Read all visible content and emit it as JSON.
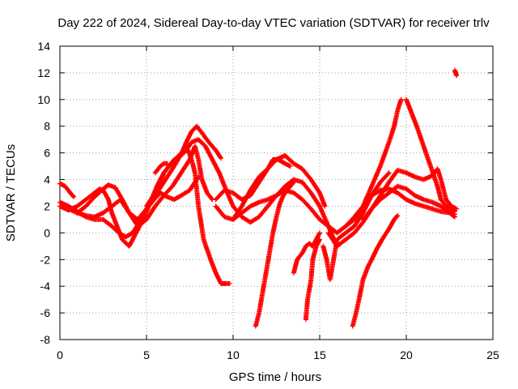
{
  "chart_data": {
    "type": "scatter",
    "title": "Day 222 of 2024, Sidereal Day-to-day VTEC variation (SDTVAR) for receiver trlv",
    "xlabel": "GPS time / hours",
    "ylabel": "SDTVAR / TECUs",
    "xlim": [
      0,
      25
    ],
    "ylim": [
      -8,
      14
    ],
    "x_ticks": [
      0,
      5,
      10,
      15,
      20,
      25
    ],
    "y_ticks": [
      -8,
      -6,
      -4,
      -2,
      0,
      2,
      4,
      6,
      8,
      10,
      12,
      14
    ],
    "grid": true,
    "marker": "+",
    "color": "#ff0000",
    "series": [
      {
        "x": [
          0.0,
          0.3,
          0.6,
          0.8
        ],
        "y": [
          3.7,
          3.5,
          3.0,
          2.7
        ]
      },
      {
        "x": [
          0.0,
          0.5,
          1.0,
          1.5,
          2.0,
          2.5,
          3.0,
          3.4,
          3.8,
          4.2,
          4.6,
          5.0,
          5.5,
          6.0,
          6.5,
          7.0,
          7.3,
          7.6,
          7.9,
          8.2,
          8.6,
          9.0,
          9.3
        ],
        "y": [
          2.3,
          2.0,
          1.6,
          1.2,
          1.0,
          1.0,
          0.5,
          0.0,
          -0.3,
          0.0,
          0.8,
          1.8,
          2.8,
          3.8,
          4.8,
          5.9,
          6.8,
          7.6,
          8.0,
          7.5,
          6.8,
          6.2,
          5.6
        ]
      },
      {
        "x": [
          0.0,
          0.5,
          1.0,
          1.5,
          2.0,
          2.3,
          2.5,
          2.8,
          3.0,
          3.3,
          3.6,
          4.0,
          4.4,
          4.8,
          5.2,
          5.6,
          6.0,
          6.5,
          7.0,
          7.4,
          7.6,
          7.8,
          8.0,
          8.3,
          8.7,
          9.0,
          9.3,
          9.6,
          9.8
        ],
        "y": [
          2.0,
          1.7,
          2.0,
          2.5,
          3.0,
          3.3,
          3.2,
          2.5,
          1.5,
          0.5,
          -0.5,
          -1.0,
          0.0,
          1.0,
          2.2,
          3.5,
          4.5,
          5.3,
          6.0,
          6.2,
          5.5,
          4.5,
          2.0,
          -0.5,
          -2.0,
          -3.0,
          -3.8,
          -3.8,
          -3.8
        ]
      },
      {
        "x": [
          0.5,
          1.0,
          1.5,
          2.0,
          2.5,
          3.0,
          3.5,
          4.0,
          4.5,
          5.0,
          5.5,
          6.0,
          6.5,
          7.0,
          7.5,
          7.8,
          8.0,
          8.2,
          8.5,
          8.8
        ],
        "y": [
          1.8,
          1.5,
          1.3,
          1.2,
          1.5,
          2.0,
          2.5,
          1.5,
          0.5,
          1.0,
          2.0,
          2.8,
          3.5,
          4.5,
          5.5,
          6.5,
          5.5,
          4.0,
          3.0,
          2.5
        ]
      },
      {
        "x": [
          1.0,
          1.5,
          2.0,
          2.5,
          2.8,
          3.2,
          3.6,
          4.0,
          4.5,
          5.0,
          5.5,
          5.8,
          6.2,
          6.6,
          7.0,
          7.5,
          7.8,
          8.0
        ],
        "y": [
          1.5,
          2.0,
          2.7,
          3.3,
          3.6,
          3.4,
          2.5,
          1.5,
          1.0,
          1.8,
          2.6,
          3.0,
          2.7,
          2.5,
          2.8,
          3.2,
          3.8,
          4.2
        ]
      },
      {
        "x": [
          5.0,
          5.5,
          5.8,
          6.0,
          6.3,
          6.6,
          7.0,
          7.3,
          7.6,
          8.0,
          8.4,
          8.8,
          9.2,
          9.6,
          10.0,
          10.5,
          11.0,
          11.5,
          12.0,
          12.5,
          13.0,
          13.5,
          14.0,
          14.5,
          15.0,
          15.5,
          16.0
        ],
        "y": [
          2.0,
          3.0,
          3.8,
          4.5,
          5.0,
          5.5,
          5.8,
          6.2,
          6.8,
          7.0,
          6.5,
          5.5,
          4.5,
          3.2,
          2.0,
          1.2,
          0.8,
          1.2,
          2.0,
          2.8,
          3.5,
          4.0,
          3.8,
          3.0,
          2.0,
          0.5,
          -1.0
        ]
      },
      {
        "x": [
          5.5,
          5.8,
          6.0,
          6.2
        ],
        "y": [
          4.5,
          5.0,
          5.2,
          5.2
        ]
      },
      {
        "x": [
          9.0,
          9.5,
          10.0,
          10.5,
          11.0,
          11.5,
          12.0,
          12.5,
          13.0,
          13.5,
          14.0,
          14.5,
          15.0,
          15.3
        ],
        "y": [
          2.0,
          1.2,
          1.0,
          2.0,
          3.2,
          4.2,
          4.8,
          5.5,
          5.8,
          5.2,
          4.8,
          4.0,
          3.0,
          2.0
        ]
      },
      {
        "x": [
          9.0,
          9.5,
          10.0,
          10.5,
          11.0,
          11.5,
          12.0,
          12.3,
          12.6,
          13.0,
          13.3
        ],
        "y": [
          2.5,
          3.2,
          3.0,
          2.5,
          2.8,
          3.8,
          4.8,
          5.5,
          5.5,
          5.2,
          5.0
        ]
      },
      {
        "x": [
          10.0,
          10.5,
          11.0,
          11.5,
          12.0,
          12.5,
          13.0,
          13.5,
          14.0,
          14.5,
          15.0,
          15.5,
          16.0,
          16.5,
          17.0,
          17.5,
          18.0,
          18.5,
          19.0,
          19.5,
          20.0,
          20.5,
          21.0,
          21.5,
          22.0,
          22.5,
          22.8
        ],
        "y": [
          1.0,
          1.5,
          2.0,
          2.3,
          2.5,
          2.8,
          3.2,
          3.0,
          2.5,
          1.8,
          1.0,
          0.5,
          0.0,
          0.5,
          1.2,
          2.0,
          2.8,
          3.2,
          3.3,
          3.0,
          2.5,
          2.2,
          2.0,
          1.8,
          1.6,
          1.5,
          1.4
        ]
      },
      {
        "x": [
          11.3,
          11.5,
          11.7,
          11.9,
          12.1,
          12.3,
          12.5,
          12.7,
          12.9,
          13.1,
          13.3,
          13.5
        ],
        "y": [
          -7.0,
          -6.0,
          -4.5,
          -3.0,
          -1.5,
          0.0,
          1.2,
          2.2,
          2.8,
          3.2,
          3.5,
          3.8
        ]
      },
      {
        "x": [
          13.5,
          13.7,
          14.0,
          14.2,
          14.4,
          14.6,
          14.8,
          15.0
        ],
        "y": [
          -3.0,
          -2.0,
          -1.5,
          -1.0,
          -0.8,
          -1.0,
          -0.5,
          0.0
        ]
      },
      {
        "x": [
          14.2,
          14.3,
          14.5,
          14.6,
          14.8,
          15.0
        ],
        "y": [
          -6.5,
          -5.0,
          -3.5,
          -2.0,
          -1.0,
          -0.5
        ]
      },
      {
        "x": [
          15.2,
          15.4,
          15.6,
          15.8,
          16.0,
          16.5,
          17.0,
          17.5,
          18.0,
          18.5,
          19.0
        ],
        "y": [
          -1.0,
          -2.0,
          -3.5,
          -2.0,
          -0.5,
          0.0,
          0.5,
          1.5,
          2.8,
          3.8,
          4.5
        ]
      },
      {
        "x": [
          16.5,
          17.0,
          17.5,
          18.0,
          18.5,
          19.0,
          19.3,
          19.5,
          19.7
        ],
        "y": [
          0.5,
          1.0,
          2.0,
          3.5,
          5.0,
          6.8,
          8.0,
          9.2,
          10.0
        ]
      },
      {
        "x": [
          20.0,
          20.3,
          20.6,
          21.0,
          21.4,
          21.8,
          22.0,
          22.3,
          22.6,
          22.8
        ],
        "y": [
          10.0,
          9.0,
          8.0,
          6.5,
          5.0,
          3.5,
          2.5,
          2.0,
          1.8,
          1.6
        ]
      },
      {
        "x": [
          16.9,
          17.1,
          17.3,
          17.5,
          17.8,
          18.0,
          18.3,
          18.6,
          19.0,
          19.3,
          19.5
        ],
        "y": [
          -7.0,
          -6.0,
          -4.8,
          -3.5,
          -2.5,
          -2.0,
          -1.2,
          -0.5,
          0.3,
          1.0,
          1.3
        ]
      },
      {
        "x": [
          15.5,
          16.0,
          16.5,
          17.0,
          17.5,
          18.0,
          18.5,
          19.0,
          19.5,
          20.0,
          20.5,
          21.0,
          21.5,
          21.8,
          22.0,
          22.3,
          22.6,
          22.9
        ],
        "y": [
          0.0,
          -1.0,
          -0.5,
          0.0,
          0.8,
          1.8,
          2.8,
          3.8,
          4.7,
          4.5,
          4.2,
          4.0,
          4.3,
          4.8,
          4.0,
          2.5,
          2.0,
          1.8
        ]
      },
      {
        "x": [
          17.5,
          18.0,
          18.5,
          19.0,
          19.5,
          20.0,
          20.5,
          21.0,
          21.5,
          22.0,
          22.5,
          22.8
        ],
        "y": [
          1.0,
          1.8,
          2.5,
          3.0,
          3.5,
          3.3,
          2.8,
          2.5,
          2.3,
          2.0,
          1.5,
          1.2
        ]
      },
      {
        "x": [
          22.8,
          22.85,
          22.9
        ],
        "y": [
          12.2,
          12.0,
          11.8
        ]
      }
    ]
  }
}
